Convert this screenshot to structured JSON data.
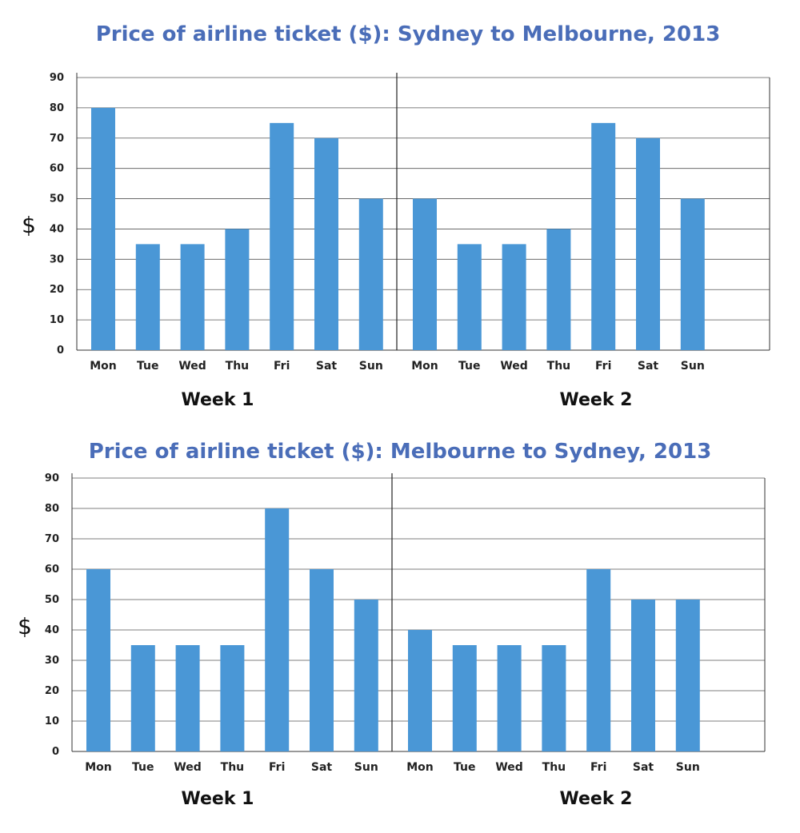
{
  "chart_data": [
    {
      "type": "bar",
      "title": "Price of airline ticket ($): Sydney to Melbourne, 2013",
      "ylabel": "$",
      "ylim": [
        0,
        90
      ],
      "yticks": [
        0,
        10,
        20,
        30,
        40,
        50,
        60,
        70,
        80,
        90
      ],
      "grid": true,
      "color": "#4a97d6",
      "panels": [
        {
          "label": "Week 1",
          "categories": [
            "Mon",
            "Tue",
            "Wed",
            "Thu",
            "Fri",
            "Sat",
            "Sun"
          ],
          "values": [
            80,
            35,
            35,
            40,
            75,
            70,
            50
          ]
        },
        {
          "label": "Week 2",
          "categories": [
            "Mon",
            "Tue",
            "Wed",
            "Thu",
            "Fri",
            "Sat",
            "Sun"
          ],
          "values": [
            50,
            35,
            35,
            40,
            75,
            70,
            50
          ]
        }
      ]
    },
    {
      "type": "bar",
      "title": "Price of airline ticket ($): Melbourne to Sydney, 2013",
      "ylabel": "$",
      "ylim": [
        0,
        90
      ],
      "yticks": [
        0,
        10,
        20,
        30,
        40,
        50,
        60,
        70,
        80,
        90
      ],
      "grid": true,
      "color": "#4a97d6",
      "panels": [
        {
          "label": "Week 1",
          "categories": [
            "Mon",
            "Tue",
            "Wed",
            "Thu",
            "Fri",
            "Sat",
            "Sun"
          ],
          "values": [
            60,
            35,
            35,
            35,
            80,
            60,
            50
          ]
        },
        {
          "label": "Week 2",
          "categories": [
            "Mon",
            "Tue",
            "Wed",
            "Thu",
            "Fri",
            "Sat",
            "Sun"
          ],
          "values": [
            40,
            35,
            35,
            35,
            60,
            50,
            50
          ]
        }
      ]
    }
  ]
}
